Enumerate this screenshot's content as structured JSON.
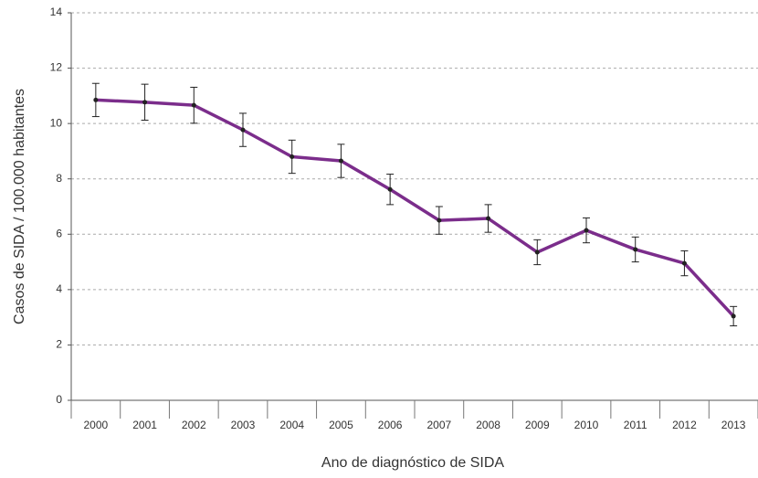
{
  "chart_data": {
    "type": "line",
    "xlabel": "Ano de diagnóstico de SIDA",
    "ylabel": "Casos de SIDA / 100.000 habitantes",
    "categories": [
      "2000",
      "2001",
      "2002",
      "2003",
      "2004",
      "2005",
      "2006",
      "2007",
      "2008",
      "2009",
      "2010",
      "2011",
      "2012",
      "2013"
    ],
    "series": [
      {
        "name": "Casos",
        "color": "#7b2d8b",
        "values": [
          10.85,
          10.77,
          10.66,
          9.77,
          8.8,
          8.65,
          7.62,
          6.5,
          6.57,
          5.35,
          6.14,
          5.45,
          4.95,
          3.04
        ],
        "errors": [
          0.6,
          0.65,
          0.65,
          0.6,
          0.6,
          0.6,
          0.55,
          0.5,
          0.5,
          0.45,
          0.45,
          0.45,
          0.45,
          0.35
        ]
      }
    ],
    "ylim": [
      0,
      14
    ],
    "yticks": [
      0,
      2,
      4,
      6,
      8,
      10,
      12,
      14
    ],
    "grid": true
  }
}
